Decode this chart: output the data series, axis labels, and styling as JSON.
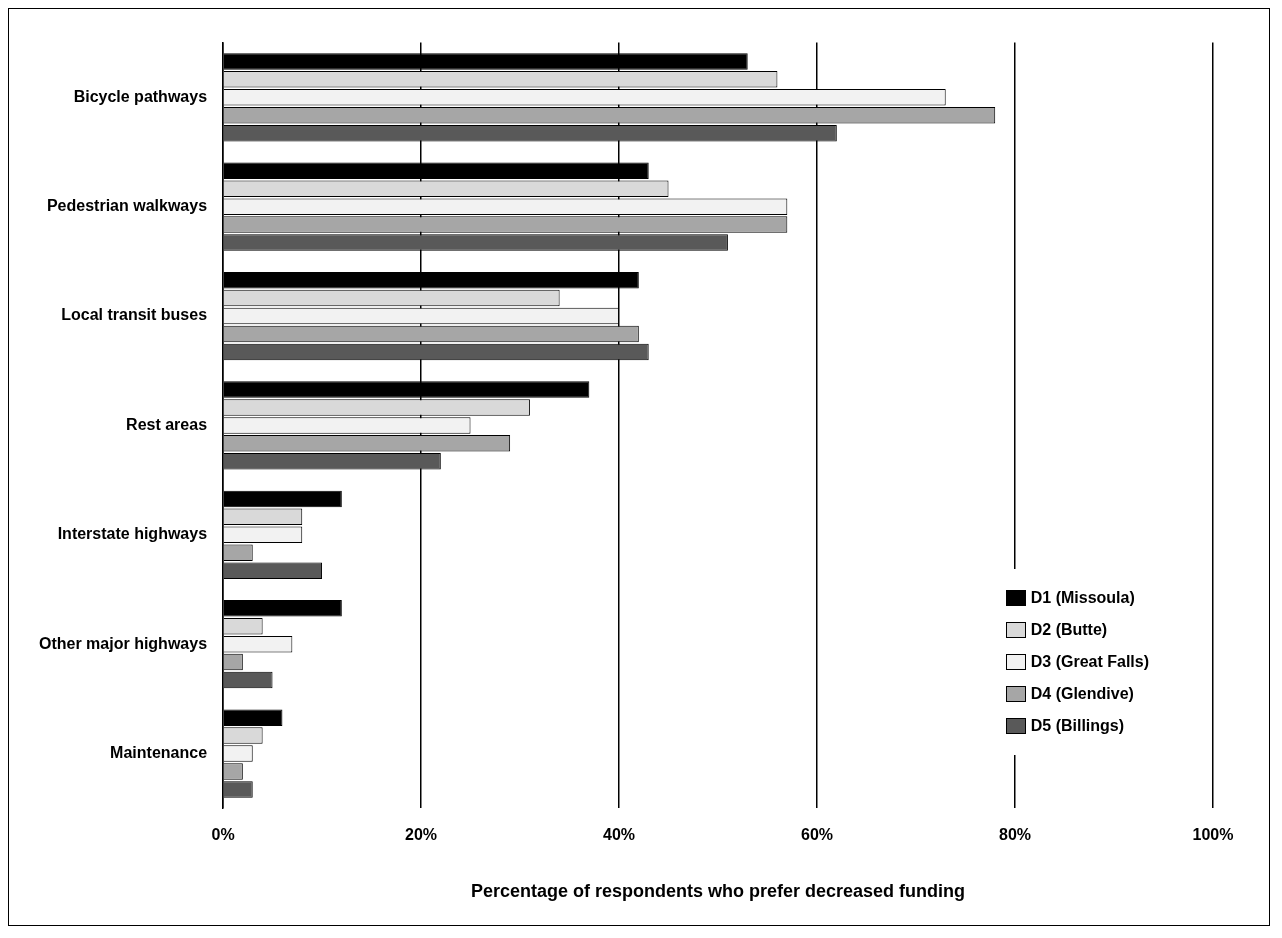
{
  "chart_data": {
    "type": "bar",
    "orientation": "horizontal",
    "xlabel": "Percentage of respondents who prefer decreased funding",
    "categories": [
      "Bicycle pathways",
      "Pedestrian walkways",
      "Local transit buses",
      "Rest areas",
      "Interstate highways",
      "Other major highways",
      "Maintenance"
    ],
    "series": [
      {
        "name": "D1 (Missoula)",
        "color": "#000000",
        "values": [
          53,
          43,
          42,
          37,
          12,
          12,
          6
        ]
      },
      {
        "name": "D2 (Butte)",
        "color": "#d9d9d9",
        "values": [
          56,
          45,
          34,
          31,
          8,
          4,
          4
        ]
      },
      {
        "name": "D3 (Great Falls)",
        "color": "#f2f2f2",
        "values": [
          73,
          57,
          40,
          25,
          8,
          7,
          3
        ]
      },
      {
        "name": "D4 (Glendive)",
        "color": "#a6a6a6",
        "values": [
          78,
          57,
          42,
          29,
          3,
          2,
          2
        ]
      },
      {
        "name": "D5 (Billings)",
        "color": "#595959",
        "values": [
          62,
          51,
          43,
          22,
          10,
          5,
          3
        ]
      }
    ],
    "xlim": [
      0,
      100
    ],
    "xticks": [
      {
        "value": 0,
        "label": "0%"
      },
      {
        "value": 20,
        "label": "20%"
      },
      {
        "value": 40,
        "label": "40%"
      },
      {
        "value": 60,
        "label": "60%"
      },
      {
        "value": 80,
        "label": "80%"
      },
      {
        "value": 100,
        "label": "100%"
      }
    ],
    "grid": "x",
    "legend": "bottom right"
  }
}
